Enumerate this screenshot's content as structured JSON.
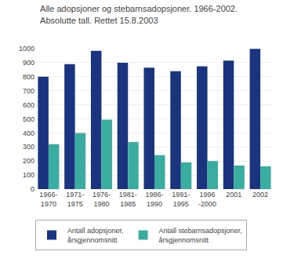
{
  "chart_data": {
    "type": "bar",
    "title": "Alle adopsjoner og stebarnsadopsjoner. 1966-2002.",
    "subtitle": "Absolutte tall. Rettet 15.8.2003",
    "categories": [
      "1966-\n1970",
      "1971-\n1975",
      "1976-\n1980",
      "1981-\n1985",
      "1986-\n1990",
      "1991-\n1995",
      "1996\n-2000",
      "2001",
      "2002"
    ],
    "series": [
      {
        "name": "Antall adopsjoner,\nårsgjennomsnitt",
        "color": "#1a3480",
        "values": [
          800,
          890,
          985,
          900,
          865,
          840,
          875,
          915,
          998
        ]
      },
      {
        "name": "Antall stebarnsadopsjoner,\nårsgjennomsnitt",
        "color": "#3aada0",
        "values": [
          320,
          400,
          495,
          335,
          242,
          190,
          200,
          168,
          162
        ]
      }
    ],
    "ylim": [
      0,
      1000
    ],
    "yticks": [
      0,
      100,
      200,
      300,
      400,
      500,
      600,
      700,
      800,
      900,
      1000
    ],
    "grid": true,
    "legend": "lower left"
  }
}
